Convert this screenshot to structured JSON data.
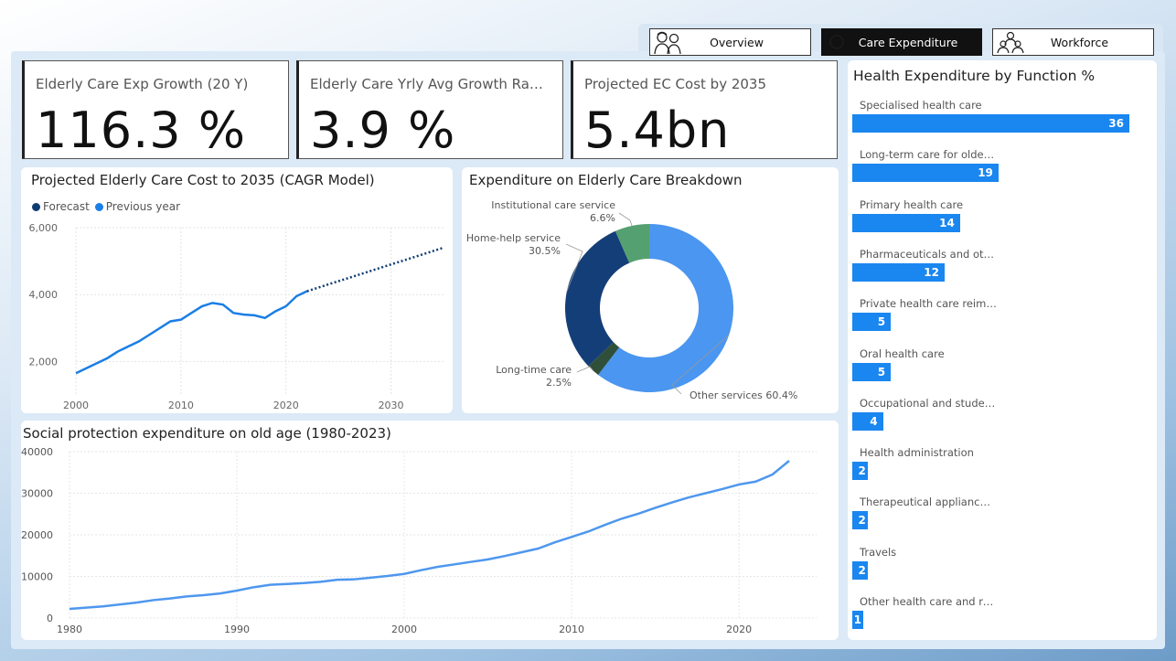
{
  "nav": {
    "tabs": [
      {
        "label": "Overview",
        "icon": "elderly-couple-icon",
        "active": false
      },
      {
        "label": "Care Expenditure",
        "icon": "money-icon",
        "active": true
      },
      {
        "label": "Workforce",
        "icon": "people-group-icon",
        "active": false
      }
    ]
  },
  "kpis": [
    {
      "title": "Elderly Care Exp Growth (20 Y)",
      "value": "116.3 %"
    },
    {
      "title": "Elderly Care Yrly Avg Growth Rate...",
      "value": "3.9 %"
    },
    {
      "title": "Projected EC Cost by 2035",
      "value": "5.4bn"
    }
  ],
  "projection": {
    "title": "Projected Elderly Care Cost to 2035 (CAGR Model)",
    "legend": [
      "Forecast",
      "Previous year"
    ],
    "colors": {
      "forecast": "#0f3b73",
      "previous": "#1a7ee6"
    },
    "chart_data": {
      "type": "line",
      "xlim": [
        2000,
        2035
      ],
      "ylim": [
        1000,
        6000
      ],
      "x_ticks": [
        "2000",
        "2010",
        "2020",
        "2030"
      ],
      "x_tick_values": [
        2000,
        2010,
        2020,
        2030
      ],
      "y_ticks": [
        "2,000",
        "4,000",
        "6,000"
      ],
      "y_tick_values": [
        2000,
        4000,
        6000
      ],
      "series": [
        {
          "name": "Previous year",
          "x": [
            2000,
            2001,
            2002,
            2003,
            2004,
            2005,
            2006,
            2007,
            2008,
            2009,
            2010,
            2011,
            2012,
            2013,
            2014,
            2015,
            2016,
            2017,
            2018,
            2019,
            2020,
            2021,
            2022
          ],
          "y": [
            1650,
            1800,
            1950,
            2100,
            2300,
            2450,
            2600,
            2800,
            3000,
            3200,
            3250,
            3450,
            3650,
            3750,
            3700,
            3450,
            3400,
            3380,
            3300,
            3500,
            3650,
            3950,
            4100
          ]
        },
        {
          "name": "Forecast",
          "x": [
            2022,
            2035
          ],
          "y": [
            4100,
            5400
          ]
        }
      ]
    }
  },
  "breakdown": {
    "title": "Expenditure on Elderly Care Breakdown",
    "chart_data": {
      "type": "pie",
      "slices": [
        {
          "label": "Other services",
          "value": 60.4,
          "display": "Other services 60.4%",
          "color": "#4a96f0"
        },
        {
          "label": "Long-time care",
          "value": 2.5,
          "display": "2.5%",
          "color": "#2f4f3b"
        },
        {
          "label": "Home-help service",
          "value": 30.5,
          "display": "30.5%",
          "color": "#143e78"
        },
        {
          "label": "Institutional care service",
          "value": 6.6,
          "display": "6.6%",
          "color": "#55a070"
        }
      ]
    }
  },
  "social": {
    "title": "Social protection expenditure on old age (1980-2023)",
    "color": "#4e97ee",
    "chart_data": {
      "type": "line",
      "xlim": [
        1980,
        2023
      ],
      "ylim": [
        0,
        40000
      ],
      "x_ticks": [
        "1980",
        "1990",
        "2000",
        "2010",
        "2020"
      ],
      "x_tick_values": [
        1980,
        1990,
        2000,
        2010,
        2020
      ],
      "y_ticks": [
        "0",
        "10000",
        "20000",
        "30000",
        "40000"
      ],
      "y_tick_values": [
        0,
        10000,
        20000,
        30000,
        40000
      ],
      "series": [
        {
          "name": "",
          "x": [
            1980,
            1982,
            1984,
            1985,
            1986,
            1987,
            1988,
            1989,
            1990,
            1991,
            1992,
            1993,
            1994,
            1995,
            1996,
            1997,
            1998,
            1999,
            2000,
            2001,
            2002,
            2003,
            2004,
            2005,
            2006,
            2007,
            2008,
            2009,
            2010,
            2011,
            2012,
            2013,
            2014,
            2015,
            2016,
            2017,
            2018,
            2019,
            2020,
            2021,
            2022,
            2023
          ],
          "y": [
            2200,
            2800,
            3700,
            4300,
            4700,
            5200,
            5500,
            5900,
            6600,
            7400,
            8000,
            8200,
            8400,
            8700,
            9200,
            9300,
            9700,
            10100,
            10600,
            11500,
            12300,
            12900,
            13500,
            14100,
            14900,
            15800,
            16700,
            18200,
            19500,
            20800,
            22400,
            23900,
            25100,
            26500,
            27800,
            29000,
            30000,
            31000,
            32100,
            32800,
            34500,
            37800
          ]
        }
      ]
    }
  },
  "function": {
    "title": "Health Expenditure by Function %",
    "color": "#1a86f0",
    "chart_data": {
      "type": "bar",
      "max": 36,
      "items": [
        {
          "label": "Specialised health care",
          "value": 36
        },
        {
          "label": "Long-term care for older p...",
          "value": 19
        },
        {
          "label": "Primary health care",
          "value": 14
        },
        {
          "label": "Pharmaceuticals and other...",
          "value": 12
        },
        {
          "label": "Private health care reimbu...",
          "value": 5
        },
        {
          "label": "Oral health care",
          "value": 5
        },
        {
          "label": "Occupational and student ...",
          "value": 4
        },
        {
          "label": "Health administration",
          "value": 2
        },
        {
          "label": "Therapeutical appliances a...",
          "value": 2
        },
        {
          "label": "Travels",
          "value": 2
        },
        {
          "label": "Other health care and reh...",
          "value": 1
        }
      ]
    }
  }
}
